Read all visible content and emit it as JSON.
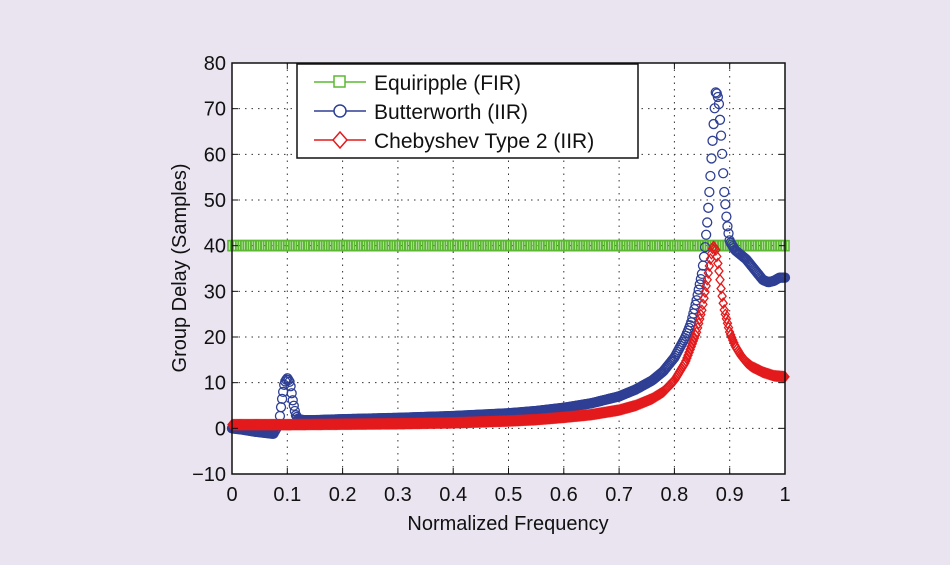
{
  "chart_data": {
    "type": "line",
    "title": "",
    "xlabel": "Normalized Frequency",
    "ylabel": "Group Delay (Samples)",
    "xlim": [
      0,
      1
    ],
    "ylim": [
      -10,
      80
    ],
    "grid": true,
    "legend_position": "top-left",
    "x_ticks": [
      "0",
      "0.1",
      "0.2",
      "0.3",
      "0.4",
      "0.5",
      "0.6",
      "0.7",
      "0.8",
      "0.9",
      "1"
    ],
    "y_ticks": [
      "−10",
      "0",
      "10",
      "20",
      "30",
      "40",
      "50",
      "60",
      "70",
      "80"
    ],
    "x_tick_values": [
      0,
      0.1,
      0.2,
      0.3,
      0.4,
      0.5,
      0.6,
      0.7,
      0.8,
      0.9,
      1
    ],
    "y_tick_values": [
      -10,
      0,
      10,
      20,
      30,
      40,
      50,
      60,
      70,
      80
    ],
    "series": [
      {
        "name": "Equiripple (FIR)",
        "color": "#5cb832",
        "marker": "square",
        "x": [
          0,
          0.2,
          0.4,
          0.6,
          0.8,
          1.0
        ],
        "y": [
          40,
          40,
          40,
          40,
          40,
          40
        ]
      },
      {
        "name": "Butterworth (IIR)",
        "color": "#2e3f94",
        "marker": "circle",
        "x": [
          0,
          0.02,
          0.04,
          0.06,
          0.075,
          0.085,
          0.09,
          0.095,
          0.1,
          0.105,
          0.11,
          0.115,
          0.12,
          0.13,
          0.15,
          0.2,
          0.3,
          0.4,
          0.5,
          0.55,
          0.6,
          0.65,
          0.7,
          0.73,
          0.76,
          0.78,
          0.8,
          0.82,
          0.83,
          0.84,
          0.85,
          0.855,
          0.86,
          0.865,
          0.87,
          0.875,
          0.88,
          0.885,
          0.89,
          0.895,
          0.9,
          0.91,
          0.92,
          0.93,
          0.94,
          0.95,
          0.96,
          0.97,
          0.98,
          0.99,
          1.0
        ],
        "y": [
          0,
          -0.3,
          -0.7,
          -1.0,
          -1.2,
          1,
          6,
          10,
          11,
          10,
          6,
          3,
          2,
          1.8,
          1.8,
          2,
          2.3,
          2.7,
          3.3,
          3.8,
          4.5,
          5.5,
          7,
          8.5,
          10.5,
          12.5,
          15.5,
          20,
          23,
          28,
          34,
          39,
          46,
          55,
          65,
          74,
          72,
          63,
          52,
          45,
          41,
          39,
          38,
          37,
          35.5,
          34,
          32.5,
          32,
          32.3,
          33,
          33
        ]
      },
      {
        "name": "Chebyshev Type 2 (IIR)",
        "color": "#e31a1c",
        "marker": "diamond",
        "x": [
          0,
          0.1,
          0.2,
          0.3,
          0.4,
          0.5,
          0.55,
          0.6,
          0.65,
          0.7,
          0.73,
          0.76,
          0.78,
          0.8,
          0.82,
          0.84,
          0.85,
          0.86,
          0.865,
          0.87,
          0.875,
          0.88,
          0.885,
          0.89,
          0.9,
          0.91,
          0.92,
          0.93,
          0.94,
          0.96,
          0.98,
          1.0
        ],
        "y": [
          0.8,
          0.8,
          0.9,
          1.0,
          1.2,
          1.6,
          1.9,
          2.4,
          3.0,
          4.0,
          5.0,
          6.5,
          8.0,
          10.5,
          14.5,
          21,
          26,
          33,
          37,
          40,
          39,
          35,
          30,
          26,
          21,
          18,
          16,
          14.5,
          13.5,
          12.3,
          11.5,
          11.3
        ]
      }
    ]
  }
}
